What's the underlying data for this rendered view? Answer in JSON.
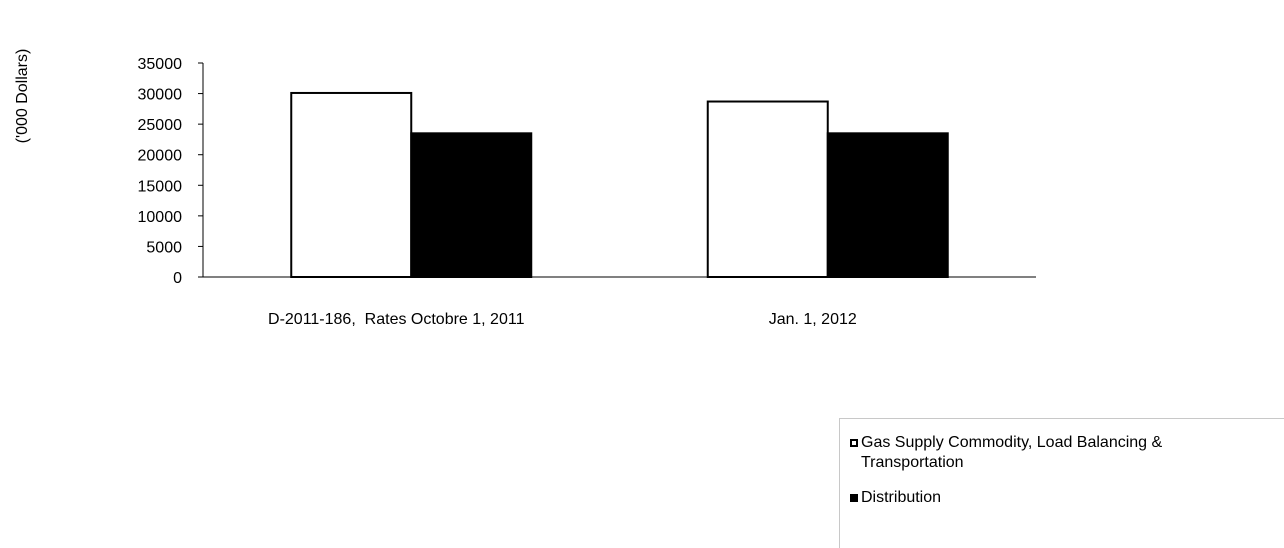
{
  "chart_data": {
    "type": "bar",
    "ylabel": "('000 Dollars)",
    "xlabel": "",
    "categories": [
      "D-2011-186,  Rates Octobre 1, 2011",
      "Jan. 1, 2012"
    ],
    "series": [
      {
        "name": "Gas Supply Commodity, Load Balancing & Transportation",
        "values": [
          30100,
          28700
        ],
        "fill": "#ffffff"
      },
      {
        "name": "Distribution",
        "values": [
          23500,
          23500
        ],
        "fill": "#000000"
      }
    ],
    "ylim": [
      0,
      35000
    ],
    "yticks": [
      "0",
      "5000",
      "10000",
      "15000",
      "20000",
      "25000",
      "30000",
      "35000"
    ],
    "grid": false,
    "legend_position": "bottom-right"
  },
  "legend": {
    "items": [
      {
        "label": "Gas Supply Commodity, Load Balancing & Transportation",
        "fill": "#ffffff"
      },
      {
        "label": "Distribution",
        "fill": "#000000"
      }
    ]
  }
}
